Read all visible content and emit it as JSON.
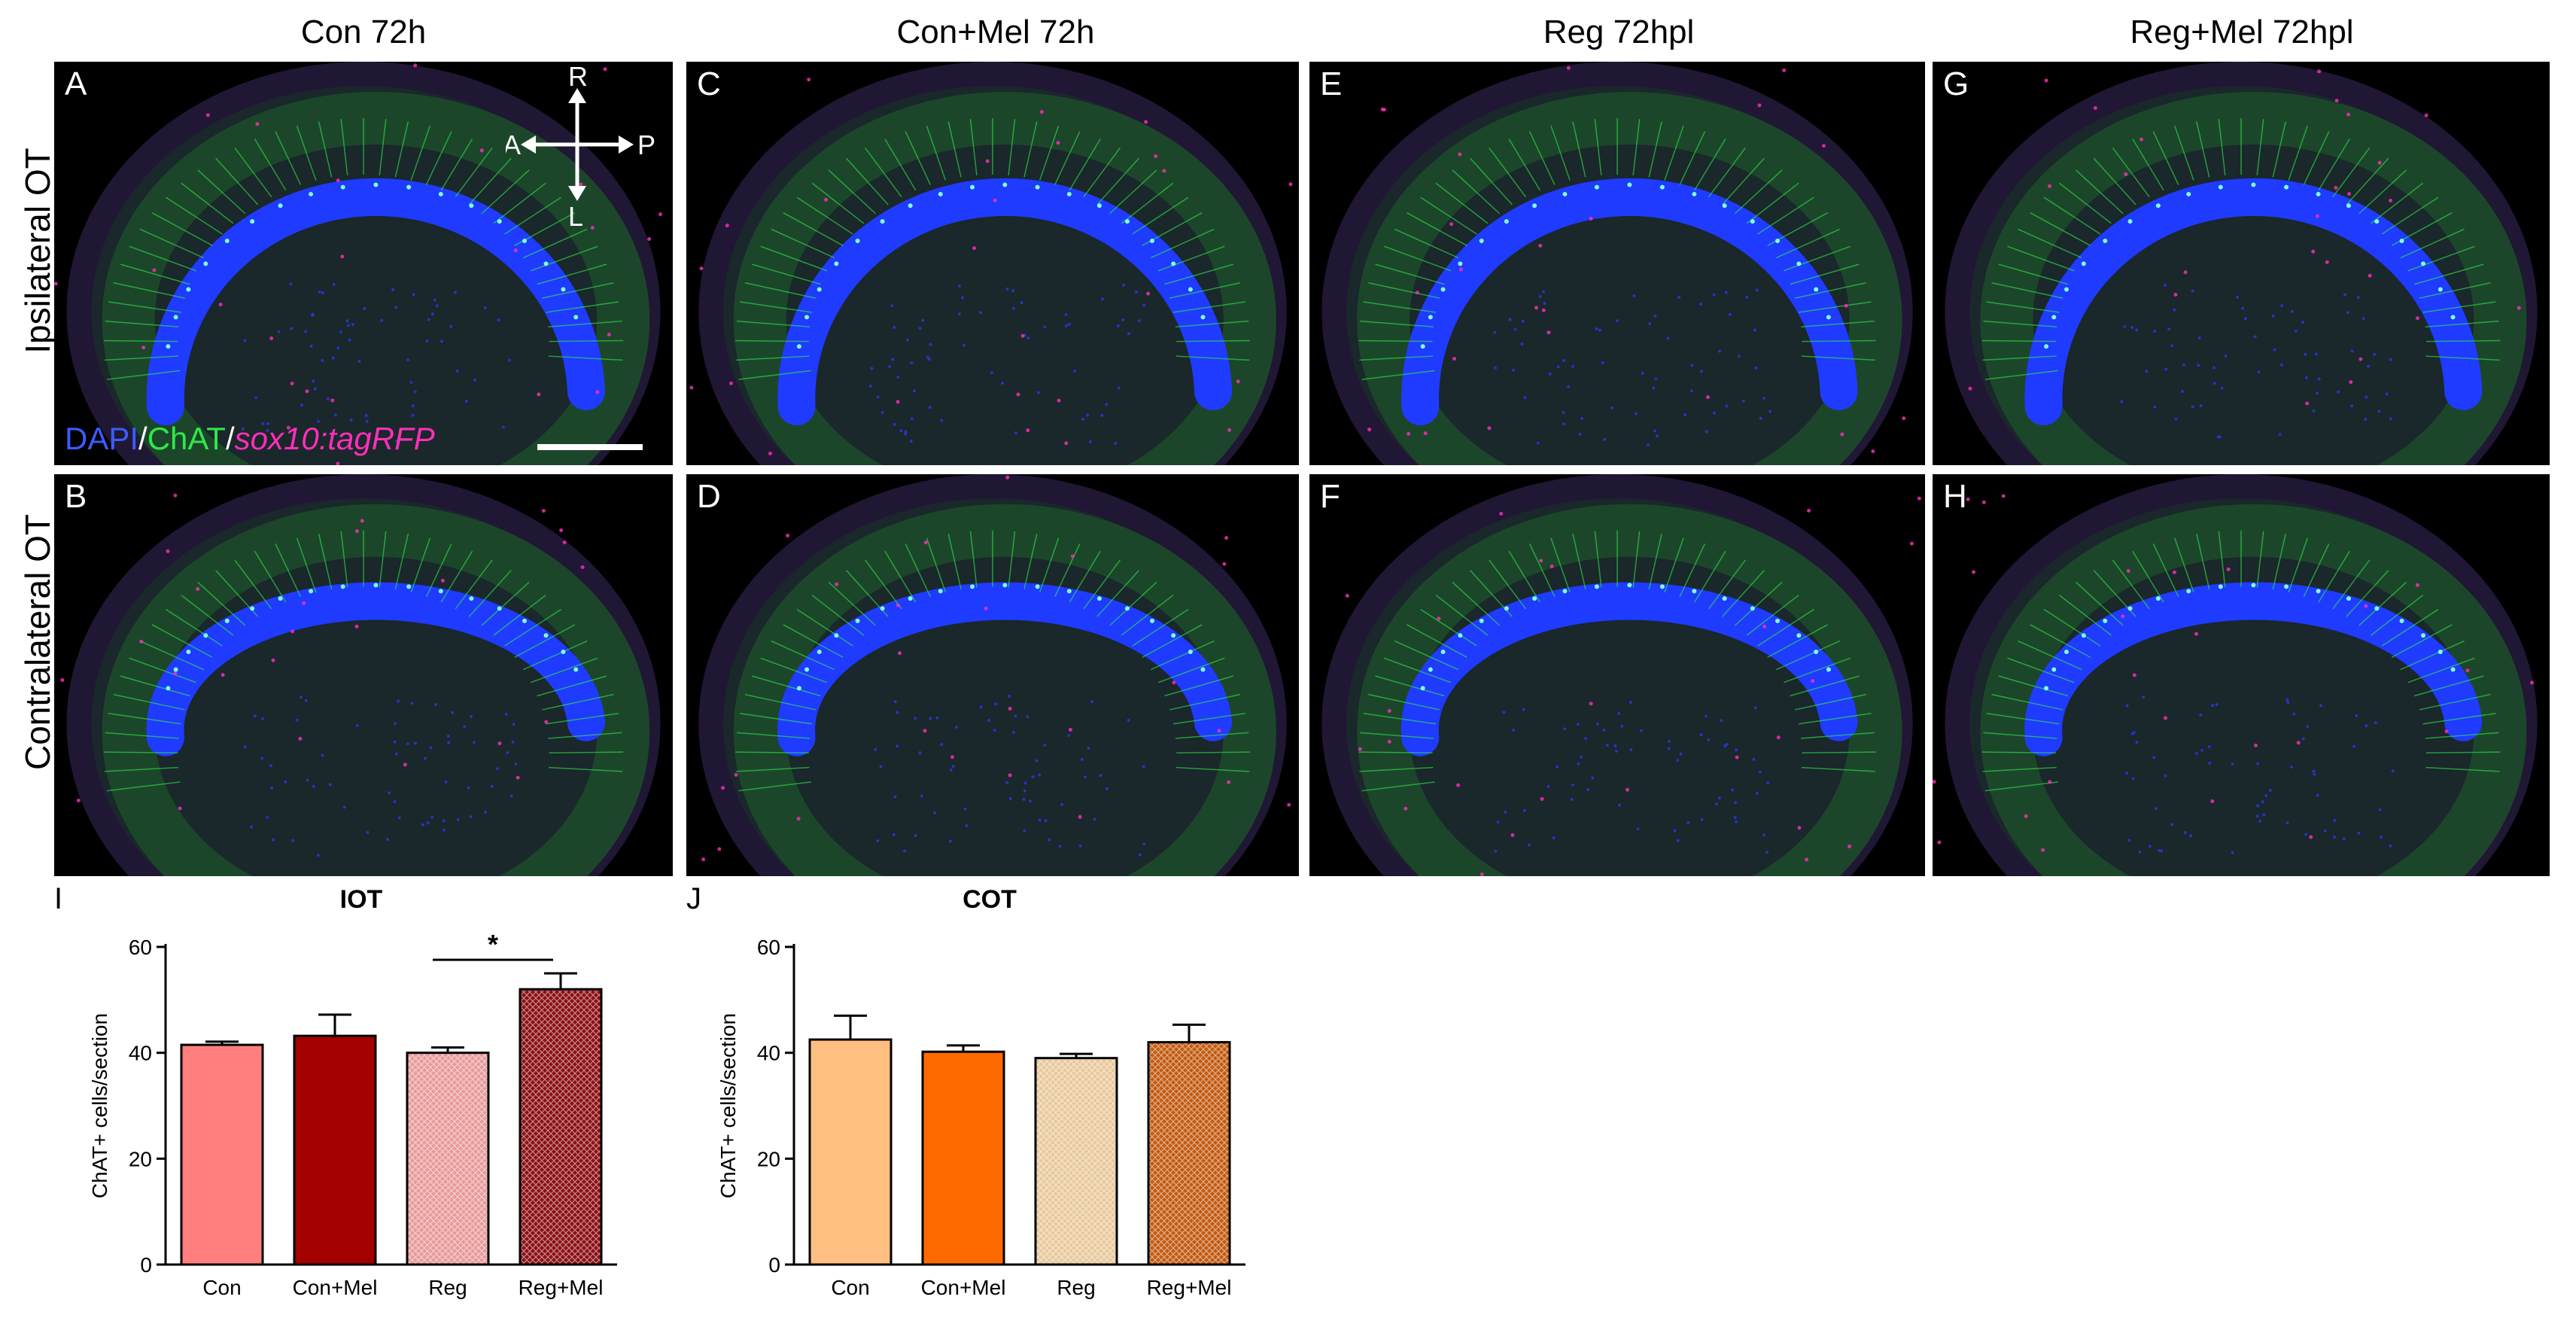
{
  "figure": {
    "column_titles": [
      "Con 72h",
      "Con+Mel 72h",
      "Reg 72hpl",
      "Reg+Mel 72hpl"
    ],
    "row_labels": [
      "Ipsilateral OT",
      "Contralateral OT"
    ],
    "panel_letters": [
      "A",
      "C",
      "E",
      "G",
      "B",
      "D",
      "F",
      "H"
    ],
    "legend": {
      "dapi": "DAPI",
      "sep1": "/",
      "chat": "ChAT",
      "sep2": "/",
      "sox": "sox10:tagRFP"
    },
    "compass": {
      "top": "R",
      "bottom": "L",
      "left": "A",
      "right": "P"
    },
    "colors": {
      "dapi": "#1f3bff",
      "chat": "#2ee84a",
      "rfp": "#ff2fb9",
      "background": "#000000"
    },
    "icons": [
      "compass-arrows-icon",
      "scale-bar"
    ]
  },
  "chart_data": [
    {
      "panel_letter": "I",
      "type": "bar",
      "title": "IOT",
      "ylabel": "ChAT+ cells/section",
      "xlabel": "",
      "categories": [
        "Con",
        "Con+Mel",
        "Reg",
        "Reg+Mel"
      ],
      "values": [
        41.5,
        43.2,
        40.0,
        52.0
      ],
      "errors": [
        0.6,
        4.0,
        1.0,
        3.0
      ],
      "ylim": [
        0,
        60
      ],
      "yticks": [
        0,
        20,
        40,
        60
      ],
      "colors": [
        "#ff7f7f",
        "#a30000",
        "#e89a9a",
        "#8b0f14"
      ],
      "patterned": [
        false,
        false,
        true,
        true
      ],
      "significance": {
        "from": 2,
        "to": 3,
        "label": "*"
      }
    },
    {
      "panel_letter": "J",
      "type": "bar",
      "title": "COT",
      "ylabel": "ChAT+ cells/section",
      "xlabel": "",
      "categories": [
        "Con",
        "Con+Mel",
        "Reg",
        "Reg+Mel"
      ],
      "values": [
        42.5,
        40.2,
        39.0,
        42.0
      ],
      "errors": [
        4.5,
        1.2,
        0.8,
        3.3
      ],
      "ylim": [
        0,
        60
      ],
      "yticks": [
        0,
        20,
        40,
        60
      ],
      "colors": [
        "#ffbf80",
        "#ff6a00",
        "#e8c89a",
        "#c25a10"
      ],
      "patterned": [
        false,
        false,
        true,
        true
      ]
    }
  ]
}
